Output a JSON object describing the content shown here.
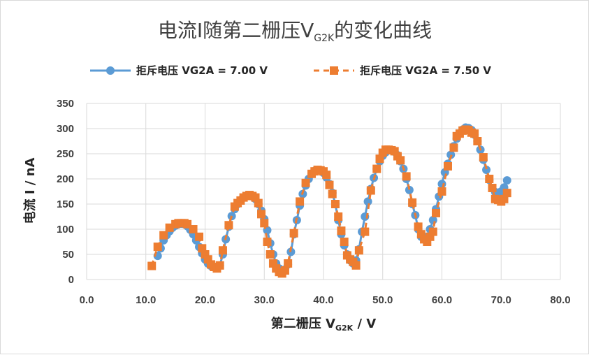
{
  "chart_data": {
    "type": "scatter",
    "title": {
      "main": "电流I随第二栅压V",
      "sub": "G2K",
      "tail": "的变化曲线"
    },
    "xlabel": {
      "main": "第二栅压 V",
      "sub": "G2K",
      "tail": " / V"
    },
    "ylabel": "电流 I / nA",
    "xlim": [
      0,
      80
    ],
    "ylim": [
      0,
      350
    ],
    "x_ticks": [
      "0.0",
      "10.0",
      "20.0",
      "30.0",
      "40.0",
      "50.0",
      "60.0",
      "70.0",
      "80.0"
    ],
    "y_ticks": [
      "0",
      "50",
      "100",
      "150",
      "200",
      "250",
      "300",
      "350"
    ],
    "grid": "vertical-and-horizontal",
    "legend_position": "top",
    "series": [
      {
        "name": "拒斥电压 VG2A = 7.00 V",
        "color": "#5b9bd5",
        "marker": "circle",
        "line": "solid",
        "points": [
          [
            12.0,
            47
          ],
          [
            12.5,
            62
          ],
          [
            13.0,
            78
          ],
          [
            13.5,
            88
          ],
          [
            14.0,
            96
          ],
          [
            14.5,
            103
          ],
          [
            15.0,
            107
          ],
          [
            15.5,
            110
          ],
          [
            16.0,
            111
          ],
          [
            16.5,
            110
          ],
          [
            17.0,
            106
          ],
          [
            17.5,
            99
          ],
          [
            18.0,
            90
          ],
          [
            18.5,
            78
          ],
          [
            19.0,
            65
          ],
          [
            19.5,
            52
          ],
          [
            20.0,
            40
          ],
          [
            20.5,
            32
          ],
          [
            21.0,
            27
          ],
          [
            21.5,
            25
          ],
          [
            22.0,
            25
          ],
          [
            22.5,
            28
          ],
          [
            23.0,
            50
          ],
          [
            23.5,
            80
          ],
          [
            24.0,
            105
          ],
          [
            24.5,
            126
          ],
          [
            25.0,
            140
          ],
          [
            25.5,
            150
          ],
          [
            26.0,
            158
          ],
          [
            26.5,
            163
          ],
          [
            27.0,
            166
          ],
          [
            27.5,
            167
          ],
          [
            28.0,
            165
          ],
          [
            28.5,
            160
          ],
          [
            29.0,
            150
          ],
          [
            29.5,
            137
          ],
          [
            30.0,
            120
          ],
          [
            30.5,
            98
          ],
          [
            31.0,
            72
          ],
          [
            31.5,
            50
          ],
          [
            32.0,
            32
          ],
          [
            32.5,
            22
          ],
          [
            33.0,
            18
          ],
          [
            33.5,
            20
          ],
          [
            34.0,
            30
          ],
          [
            34.5,
            55
          ],
          [
            35.0,
            90
          ],
          [
            35.5,
            118
          ],
          [
            36.0,
            147
          ],
          [
            36.5,
            170
          ],
          [
            37.0,
            187
          ],
          [
            37.5,
            200
          ],
          [
            38.0,
            210
          ],
          [
            38.5,
            216
          ],
          [
            39.0,
            218
          ],
          [
            39.5,
            217
          ],
          [
            40.0,
            212
          ],
          [
            40.5,
            203
          ],
          [
            41.0,
            190
          ],
          [
            41.5,
            172
          ],
          [
            42.0,
            150
          ],
          [
            42.5,
            118
          ],
          [
            43.0,
            90
          ],
          [
            43.5,
            68
          ],
          [
            44.0,
            50
          ],
          [
            44.5,
            38
          ],
          [
            45.0,
            32
          ],
          [
            45.5,
            38
          ],
          [
            46.0,
            60
          ],
          [
            46.5,
            95
          ],
          [
            47.0,
            125
          ],
          [
            47.5,
            155
          ],
          [
            48.0,
            180
          ],
          [
            48.5,
            202
          ],
          [
            49.0,
            220
          ],
          [
            49.5,
            235
          ],
          [
            50.0,
            246
          ],
          [
            50.5,
            253
          ],
          [
            51.0,
            257
          ],
          [
            51.5,
            257
          ],
          [
            52.0,
            254
          ],
          [
            52.5,
            247
          ],
          [
            53.0,
            235
          ],
          [
            53.5,
            220
          ],
          [
            54.0,
            200
          ],
          [
            54.5,
            178
          ],
          [
            55.0,
            150
          ],
          [
            55.5,
            128
          ],
          [
            56.0,
            100
          ],
          [
            56.5,
            85
          ],
          [
            57.0,
            80
          ],
          [
            57.5,
            85
          ],
          [
            58.0,
            100
          ],
          [
            58.5,
            118
          ],
          [
            59.0,
            140
          ],
          [
            59.5,
            165
          ],
          [
            60.0,
            190
          ],
          [
            60.5,
            213
          ],
          [
            61.0,
            230
          ],
          [
            61.5,
            248
          ],
          [
            62.0,
            265
          ],
          [
            62.5,
            280
          ],
          [
            63.0,
            290
          ],
          [
            63.5,
            298
          ],
          [
            64.0,
            302
          ],
          [
            64.5,
            301
          ],
          [
            65.0,
            297
          ],
          [
            65.5,
            288
          ],
          [
            66.0,
            275
          ],
          [
            66.5,
            258
          ],
          [
            67.0,
            238
          ],
          [
            67.5,
            218
          ],
          [
            68.0,
            198
          ],
          [
            68.5,
            182
          ],
          [
            69.0,
            174
          ],
          [
            69.5,
            172
          ],
          [
            70.0,
            175
          ],
          [
            70.5,
            183
          ],
          [
            71.0,
            197
          ]
        ]
      },
      {
        "name": "拒斥电压 VG2A = 7.50 V",
        "color": "#ed7d31",
        "marker": "square",
        "line": "dashed",
        "points": [
          [
            11.0,
            27
          ],
          [
            12.0,
            65
          ],
          [
            13.0,
            88
          ],
          [
            14.0,
            103
          ],
          [
            15.0,
            110
          ],
          [
            15.5,
            112
          ],
          [
            16.0,
            112
          ],
          [
            16.5,
            112
          ],
          [
            17.0,
            110
          ],
          [
            18.0,
            100
          ],
          [
            19.0,
            85
          ],
          [
            19.5,
            62
          ],
          [
            20.0,
            50
          ],
          [
            20.5,
            40
          ],
          [
            21.0,
            30
          ],
          [
            21.5,
            25
          ],
          [
            22.0,
            22
          ],
          [
            22.5,
            28
          ],
          [
            23.0,
            58
          ],
          [
            24.0,
            108
          ],
          [
            25.0,
            145
          ],
          [
            25.5,
            152
          ],
          [
            26.0,
            157
          ],
          [
            26.5,
            163
          ],
          [
            27.0,
            166
          ],
          [
            27.5,
            168
          ],
          [
            28.0,
            166
          ],
          [
            28.5,
            163
          ],
          [
            29.0,
            152
          ],
          [
            29.5,
            130
          ],
          [
            30.0,
            112
          ],
          [
            30.5,
            75
          ],
          [
            31.0,
            50
          ],
          [
            31.5,
            32
          ],
          [
            32.0,
            22
          ],
          [
            32.5,
            15
          ],
          [
            33.0,
            12
          ],
          [
            33.5,
            18
          ],
          [
            34.0,
            32
          ],
          [
            35.0,
            92
          ],
          [
            36.0,
            155
          ],
          [
            37.0,
            192
          ],
          [
            38.0,
            210
          ],
          [
            38.5,
            215
          ],
          [
            39.0,
            218
          ],
          [
            39.5,
            217
          ],
          [
            40.0,
            215
          ],
          [
            40.5,
            208
          ],
          [
            41.0,
            188
          ],
          [
            41.5,
            170
          ],
          [
            42.0,
            150
          ],
          [
            42.5,
            125
          ],
          [
            43.0,
            97
          ],
          [
            43.5,
            75
          ],
          [
            44.0,
            48
          ],
          [
            44.5,
            40
          ],
          [
            45.0,
            35
          ],
          [
            45.5,
            28
          ],
          [
            46.0,
            58
          ],
          [
            47.0,
            95
          ],
          [
            48.0,
            177
          ],
          [
            49.0,
            220
          ],
          [
            49.5,
            240
          ],
          [
            50.0,
            252
          ],
          [
            50.5,
            258
          ],
          [
            51.0,
            258
          ],
          [
            51.5,
            257
          ],
          [
            52.0,
            255
          ],
          [
            52.5,
            245
          ],
          [
            53.0,
            237
          ],
          [
            54.0,
            205
          ],
          [
            55.0,
            153
          ],
          [
            56.0,
            105
          ],
          [
            56.5,
            90
          ],
          [
            57.0,
            80
          ],
          [
            57.5,
            75
          ],
          [
            58.0,
            85
          ],
          [
            58.5,
            95
          ],
          [
            59.0,
            132
          ],
          [
            60.0,
            175
          ],
          [
            61.0,
            225
          ],
          [
            62.0,
            262
          ],
          [
            62.5,
            285
          ],
          [
            63.0,
            290
          ],
          [
            63.5,
            296
          ],
          [
            64.0,
            298
          ],
          [
            64.5,
            297
          ],
          [
            65.0,
            292
          ],
          [
            65.5,
            290
          ],
          [
            66.0,
            275
          ],
          [
            67.0,
            243
          ],
          [
            68.0,
            200
          ],
          [
            68.5,
            182
          ],
          [
            69.0,
            160
          ],
          [
            69.5,
            158
          ],
          [
            70.0,
            155
          ],
          [
            70.5,
            160
          ],
          [
            71.0,
            172
          ]
        ]
      }
    ]
  }
}
